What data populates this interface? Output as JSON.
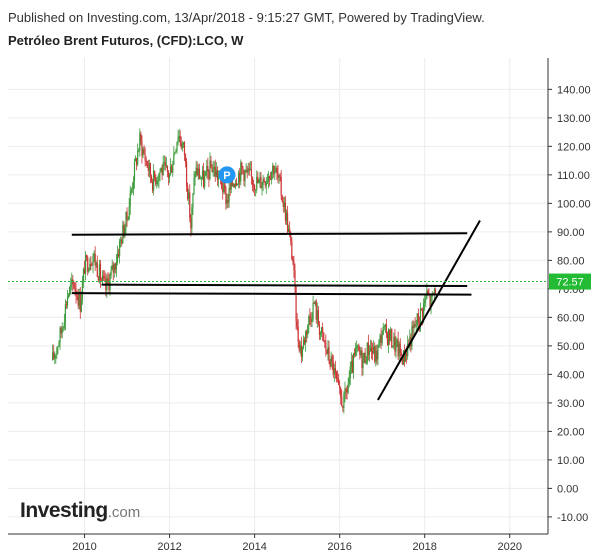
{
  "header": {
    "published_line": "Published on Investing.com, 13/Apr/2018 - 9:15:27 GMT, Powered by TradingView.",
    "instrument_title": "Petróleo Brent Futuros, (CFD):LCO, W"
  },
  "logo": {
    "main": "Investing",
    "tld": ".com"
  },
  "chart_data": {
    "type": "candlestick",
    "title": "Petróleo Brent Futuros, (CFD):LCO, W",
    "x_axis": {
      "ticks": [
        "2010",
        "2012",
        "2014",
        "2016",
        "2018",
        "2020"
      ],
      "range": [
        2008.2,
        2020.9
      ]
    },
    "y_axis": {
      "side": "right",
      "ticks": [
        "140.00",
        "130.00",
        "120.00",
        "110.00",
        "100.00",
        "90.00",
        "80.00",
        "70.00",
        "60.00",
        "50.00",
        "40.00",
        "30.00",
        "20.00",
        "10.00",
        "0.00",
        "-10.00"
      ],
      "range": [
        -16,
        151
      ]
    },
    "grid": true,
    "last_price": {
      "label": "72.57",
      "value": 72.57,
      "color": "#22bb33"
    },
    "colors": {
      "up": "#3a9a3a",
      "down": "#cc3333"
    },
    "series": [
      {
        "x": 2009.25,
        "y": 45
      },
      {
        "x": 2009.45,
        "y": 55
      },
      {
        "x": 2009.6,
        "y": 68
      },
      {
        "x": 2009.75,
        "y": 72
      },
      {
        "x": 2009.9,
        "y": 65
      },
      {
        "x": 2010.0,
        "y": 78
      },
      {
        "x": 2010.2,
        "y": 82
      },
      {
        "x": 2010.4,
        "y": 73
      },
      {
        "x": 2010.5,
        "y": 70
      },
      {
        "x": 2010.7,
        "y": 78
      },
      {
        "x": 2010.9,
        "y": 90
      },
      {
        "x": 2011.0,
        "y": 95
      },
      {
        "x": 2011.15,
        "y": 110
      },
      {
        "x": 2011.3,
        "y": 122
      },
      {
        "x": 2011.45,
        "y": 115
      },
      {
        "x": 2011.6,
        "y": 108
      },
      {
        "x": 2011.8,
        "y": 112
      },
      {
        "x": 2012.0,
        "y": 110
      },
      {
        "x": 2012.2,
        "y": 125
      },
      {
        "x": 2012.35,
        "y": 118
      },
      {
        "x": 2012.5,
        "y": 92
      },
      {
        "x": 2012.6,
        "y": 112
      },
      {
        "x": 2012.8,
        "y": 108
      },
      {
        "x": 2013.0,
        "y": 113
      },
      {
        "x": 2013.2,
        "y": 108
      },
      {
        "x": 2013.35,
        "y": 101
      },
      {
        "x": 2013.5,
        "y": 108
      },
      {
        "x": 2013.7,
        "y": 112
      },
      {
        "x": 2013.9,
        "y": 109
      },
      {
        "x": 2014.1,
        "y": 107
      },
      {
        "x": 2014.3,
        "y": 110
      },
      {
        "x": 2014.45,
        "y": 113
      },
      {
        "x": 2014.6,
        "y": 106
      },
      {
        "x": 2014.75,
        "y": 95
      },
      {
        "x": 2014.9,
        "y": 80
      },
      {
        "x": 2015.0,
        "y": 55
      },
      {
        "x": 2015.1,
        "y": 48
      },
      {
        "x": 2015.25,
        "y": 58
      },
      {
        "x": 2015.4,
        "y": 65
      },
      {
        "x": 2015.55,
        "y": 55
      },
      {
        "x": 2015.7,
        "y": 48
      },
      {
        "x": 2015.85,
        "y": 42
      },
      {
        "x": 2016.0,
        "y": 32
      },
      {
        "x": 2016.1,
        "y": 30
      },
      {
        "x": 2016.25,
        "y": 40
      },
      {
        "x": 2016.4,
        "y": 48
      },
      {
        "x": 2016.55,
        "y": 45
      },
      {
        "x": 2016.7,
        "y": 50
      },
      {
        "x": 2016.85,
        "y": 46
      },
      {
        "x": 2017.0,
        "y": 55
      },
      {
        "x": 2017.2,
        "y": 53
      },
      {
        "x": 2017.4,
        "y": 48
      },
      {
        "x": 2017.5,
        "y": 46
      },
      {
        "x": 2017.65,
        "y": 52
      },
      {
        "x": 2017.8,
        "y": 58
      },
      {
        "x": 2017.95,
        "y": 63
      },
      {
        "x": 2018.05,
        "y": 68
      },
      {
        "x": 2018.15,
        "y": 65
      },
      {
        "x": 2018.28,
        "y": 72.57
      }
    ],
    "annotations": [
      {
        "type": "trendline",
        "from": [
          2009.7,
          89
        ],
        "to": [
          2019.0,
          89.5
        ]
      },
      {
        "type": "trendline",
        "from": [
          2009.7,
          68.5
        ],
        "to": [
          2019.1,
          68
        ]
      },
      {
        "type": "trendline",
        "from": [
          2010.4,
          71.5
        ],
        "to": [
          2019.0,
          71
        ]
      },
      {
        "type": "trendline",
        "from": [
          2016.9,
          31
        ],
        "to": [
          2019.3,
          94
        ]
      },
      {
        "type": "marker",
        "label": "P",
        "at": [
          2013.35,
          110
        ],
        "color": "#2196f3"
      }
    ]
  }
}
